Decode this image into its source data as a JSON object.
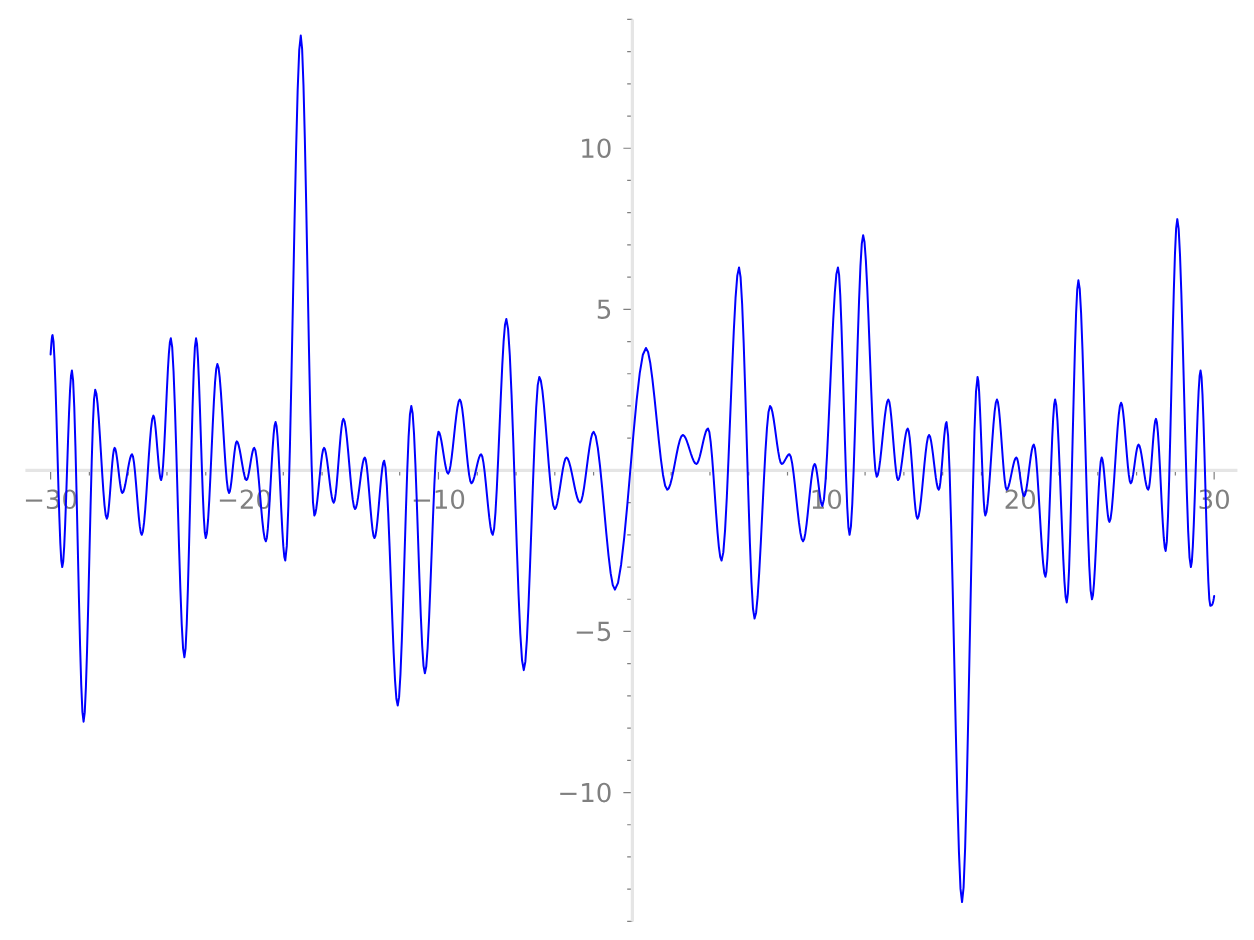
{
  "chart_data": {
    "type": "line",
    "color": "#0000ff",
    "x": [
      -30,
      -29.9,
      -29.4,
      -28.9,
      -28.3,
      -27.7,
      -27.1,
      -26.7,
      -26.3,
      -25.8,
      -25.3,
      -24.7,
      -24.3,
      -23.8,
      -23.1,
      -22.5,
      -22.0,
      -21.4,
      -20.8,
      -20.4,
      -19.9,
      -19.5,
      -18.9,
      -18.4,
      -17.9,
      -17.1,
      -16.4,
      -15.9,
      -15.4,
      -14.9,
      -14.3,
      -13.8,
      -13.3,
      -12.8,
      -12.1,
      -11.4,
      -10.7,
      -10.0,
      -9.5,
      -8.9,
      -8.3,
      -7.8,
      -7.2,
      -6.5,
      -5.6,
      -4.8,
      -4.0,
      -3.4,
      -2.7,
      -2.0,
      -0.9,
      0.7,
      1.8,
      2.6,
      3.3,
      3.9,
      4.6,
      5.5,
      6.3,
      7.1,
      7.7,
      8.1,
      8.8,
      9.4,
      9.8,
      10.6,
      11.2,
      11.9,
      12.6,
      13.2,
      13.7,
      14.2,
      14.7,
      15.3,
      15.8,
      16.2,
      17.0,
      17.8,
      18.2,
      18.8,
      19.3,
      19.8,
      20.2,
      20.7,
      21.3,
      21.8,
      22.4,
      23.0,
      23.7,
      24.2,
      24.6,
      25.2,
      25.7,
      26.1,
      26.6,
      27.0,
      27.5,
      28.1,
      28.8,
      29.3,
      29.8,
      30
    ],
    "values": [
      3.6,
      4.2,
      -3.0,
      3.1,
      -7.8,
      2.5,
      -1.5,
      0.7,
      -0.7,
      0.5,
      -2.0,
      1.7,
      -0.3,
      4.1,
      -5.8,
      4.1,
      -2.1,
      3.3,
      -0.7,
      0.9,
      -0.3,
      0.7,
      -2.2,
      1.5,
      -2.8,
      13.5,
      -1.4,
      0.7,
      -1.0,
      1.6,
      -1.2,
      0.4,
      -2.1,
      0.3,
      -7.3,
      2.0,
      -6.3,
      1.2,
      -0.1,
      2.2,
      -0.4,
      0.5,
      -2.0,
      4.7,
      -6.2,
      2.9,
      -1.2,
      0.4,
      -1.0,
      1.2,
      -3.7,
      3.8,
      -0.6,
      1.1,
      0.2,
      1.3,
      -2.8,
      6.3,
      -4.6,
      2.0,
      0.2,
      0.5,
      -2.2,
      0.2,
      -1.1,
      6.3,
      -2.0,
      7.3,
      -0.2,
      2.2,
      -0.3,
      1.3,
      -1.5,
      1.1,
      -0.6,
      1.5,
      -13.4,
      2.9,
      -1.4,
      2.2,
      -0.6,
      0.4,
      -0.8,
      0.8,
      -3.3,
      2.2,
      -4.1,
      5.9,
      -4.0,
      0.4,
      -1.6,
      2.1,
      -0.4,
      0.8,
      -0.6,
      1.6,
      -2.5,
      7.8,
      -3.0,
      3.1,
      -4.2,
      -3.9
    ],
    "xlim": [
      -31.3,
      31.2
    ],
    "ylim": [
      -14,
      14
    ],
    "xticks": [
      {
        "value": -30,
        "label": "−30"
      },
      {
        "value": -28,
        "label": null
      },
      {
        "value": -26,
        "label": null
      },
      {
        "value": -24,
        "label": null
      },
      {
        "value": -22,
        "label": null
      },
      {
        "value": -20,
        "label": "−20"
      },
      {
        "value": -18,
        "label": null
      },
      {
        "value": -16,
        "label": null
      },
      {
        "value": -14,
        "label": null
      },
      {
        "value": -12,
        "label": null
      },
      {
        "value": -10,
        "label": "−10"
      },
      {
        "value": -8,
        "label": null
      },
      {
        "value": -6,
        "label": null
      },
      {
        "value": -4,
        "label": null
      },
      {
        "value": -2,
        "label": null
      },
      {
        "value": 2,
        "label": null
      },
      {
        "value": 4,
        "label": null
      },
      {
        "value": 6,
        "label": null
      },
      {
        "value": 8,
        "label": null
      },
      10,
      {
        "value": 12,
        "label": null
      },
      {
        "value": 14,
        "label": null
      },
      {
        "value": 16,
        "label": null
      },
      {
        "value": 18,
        "label": null
      },
      20,
      {
        "value": 22,
        "label": null
      },
      {
        "value": 24,
        "label": null
      },
      {
        "value": 26,
        "label": null
      },
      {
        "value": 28,
        "label": null
      },
      30
    ],
    "yticks": [
      {
        "value": -14,
        "label": null
      },
      {
        "value": -13,
        "label": null
      },
      {
        "value": -12,
        "label": null
      },
      {
        "value": -11,
        "label": null
      },
      {
        "value": -10,
        "label": "−10"
      },
      {
        "value": -9,
        "label": null
      },
      {
        "value": -8,
        "label": null
      },
      {
        "value": -7,
        "label": null
      },
      {
        "value": -6,
        "label": null
      },
      {
        "value": -5,
        "label": "−5"
      },
      {
        "value": -4,
        "label": null
      },
      {
        "value": -3,
        "label": null
      },
      {
        "value": -2,
        "label": null
      },
      {
        "value": -1,
        "label": null
      },
      {
        "value": 1,
        "label": null
      },
      {
        "value": 2,
        "label": null
      },
      {
        "value": 3,
        "label": null
      },
      {
        "value": 4,
        "label": null
      },
      5,
      {
        "value": 6,
        "label": null
      },
      {
        "value": 7,
        "label": null
      },
      {
        "value": 8,
        "label": null
      },
      {
        "value": 9,
        "label": null
      },
      10,
      {
        "value": 11,
        "label": null
      },
      {
        "value": 12,
        "label": null
      },
      {
        "value": 13,
        "label": null
      },
      {
        "value": 14,
        "label": null
      }
    ]
  }
}
